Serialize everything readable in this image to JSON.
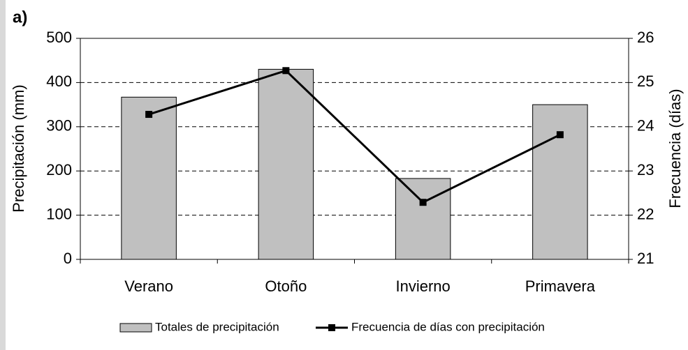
{
  "chart_data": {
    "type": "bar_line",
    "panel_label": "a)",
    "categories": [
      "Verano",
      "Otoño",
      "Invierno",
      "Primavera"
    ],
    "series": [
      {
        "name": "Totales de precipitación",
        "type": "bar",
        "color": "#c0c0c0",
        "values": [
          367,
          430,
          183,
          350
        ]
      },
      {
        "name": "Frecuencia de días con precipitación",
        "type": "line",
        "axis": "y2",
        "color": "#000000",
        "values": [
          24.28,
          25.27,
          22.29,
          23.82
        ]
      }
    ],
    "ylabel": "Precipitación (mm)",
    "y2label": "Frecuencia (días)",
    "ylim": [
      0,
      500
    ],
    "yticks": [
      0,
      100,
      200,
      300,
      400,
      500
    ],
    "y2lim": [
      21,
      26
    ],
    "y2ticks": [
      21,
      22,
      23,
      24,
      25,
      26
    ],
    "grid": true,
    "legend": "bottom"
  }
}
